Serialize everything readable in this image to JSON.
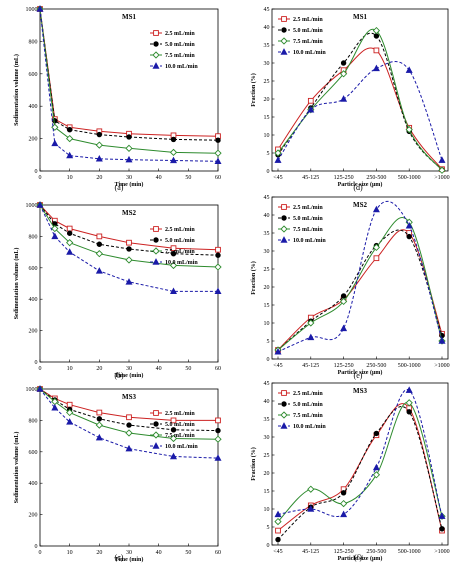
{
  "legend_labels": [
    "2.5 mL/min",
    "5.0 mL/min",
    "7.5 mL/min",
    "10.0 mL/min"
  ],
  "series_styles": [
    {
      "color": "#cc2222",
      "marker": "square-open",
      "dash": "solid"
    },
    {
      "color": "#000000",
      "marker": "circle-filled",
      "dash": "dashed"
    },
    {
      "color": "#2e8b2e",
      "marker": "diamond-open",
      "dash": "solid"
    },
    {
      "color": "#1a1aa8",
      "marker": "triangle-filled",
      "dash": "dashed"
    }
  ],
  "chart_data": [
    {
      "type": "line",
      "panel": "a",
      "caption": "(a)",
      "title": "MS1",
      "xlabel": "Time (min)",
      "ylabel": "Sedimentation volume (mL)",
      "x": [
        0,
        5,
        10,
        20,
        30,
        45,
        60
      ],
      "xlim": [
        0,
        60
      ],
      "ylim": [
        0,
        1000
      ],
      "xticks": [
        "0",
        "10",
        "20",
        "30",
        "40",
        "50",
        "60"
      ],
      "yticks": [
        "0",
        "200",
        "400",
        "600",
        "800",
        "1000"
      ],
      "series": [
        {
          "name": "2.5 mL/min",
          "values": [
            1000,
            320,
            270,
            245,
            230,
            220,
            215
          ]
        },
        {
          "name": "5.0 mL/min",
          "values": [
            1000,
            310,
            255,
            225,
            210,
            195,
            190
          ]
        },
        {
          "name": "7.5 mL/min",
          "values": [
            1000,
            270,
            200,
            160,
            140,
            115,
            110
          ]
        },
        {
          "name": "10.0 mL/min",
          "values": [
            1000,
            170,
            95,
            75,
            70,
            65,
            60
          ]
        }
      ]
    },
    {
      "type": "line",
      "panel": "b",
      "caption": "(b)",
      "title": "MS2",
      "xlabel": "Time (min)",
      "ylabel": "Sedimentation volume (mL)",
      "x": [
        0,
        5,
        10,
        20,
        30,
        45,
        60
      ],
      "xlim": [
        0,
        60
      ],
      "ylim": [
        0,
        1000
      ],
      "xticks": [
        "0",
        "10",
        "20",
        "30",
        "40",
        "50",
        "60"
      ],
      "yticks": [
        "0",
        "200",
        "400",
        "600",
        "800",
        "1000"
      ],
      "series": [
        {
          "name": "2.5 mL/min",
          "values": [
            1000,
            900,
            850,
            800,
            760,
            725,
            715
          ]
        },
        {
          "name": "5.0 mL/min",
          "values": [
            1000,
            880,
            820,
            750,
            720,
            690,
            680
          ]
        },
        {
          "name": "7.5 mL/min",
          "values": [
            1000,
            850,
            760,
            690,
            650,
            615,
            605
          ]
        },
        {
          "name": "10.0 mL/min",
          "values": [
            1000,
            800,
            700,
            580,
            510,
            450,
            450
          ]
        }
      ]
    },
    {
      "type": "line",
      "panel": "c",
      "caption": "(c)",
      "title": "MS3",
      "xlabel": "Time (min)",
      "ylabel": "Sedimentation volume (mL)",
      "x": [
        0,
        5,
        10,
        20,
        30,
        45,
        60
      ],
      "xlim": [
        0,
        60
      ],
      "ylim": [
        0,
        1000
      ],
      "xticks": [
        "0",
        "10",
        "20",
        "30",
        "40",
        "50",
        "60"
      ],
      "yticks": [
        "0",
        "200",
        "400",
        "600",
        "800",
        "1000"
      ],
      "series": [
        {
          "name": "2.5 mL/min",
          "values": [
            1000,
            940,
            900,
            850,
            820,
            800,
            800
          ]
        },
        {
          "name": "5.0 mL/min",
          "values": [
            1000,
            930,
            870,
            810,
            770,
            740,
            735
          ]
        },
        {
          "name": "7.5 mL/min",
          "values": [
            1000,
            920,
            850,
            770,
            720,
            685,
            680
          ]
        },
        {
          "name": "10.0 mL/min",
          "values": [
            1000,
            880,
            790,
            690,
            620,
            570,
            560
          ]
        }
      ]
    },
    {
      "type": "line",
      "panel": "d",
      "caption": "(d)",
      "title": "MS1",
      "xlabel": "Particle size (μm)",
      "ylabel": "Fraction (%)",
      "categories": [
        "<45",
        "45-125",
        "125-250",
        "250-500",
        "500-1000",
        ">1000"
      ],
      "ylim": [
        0,
        45
      ],
      "yticks": [
        "0",
        "5",
        "10",
        "15",
        "20",
        "25",
        "30",
        "35",
        "40",
        "45"
      ],
      "series": [
        {
          "name": "2.5 mL/min",
          "values": [
            6,
            19.5,
            28,
            33.5,
            12,
            0.5
          ]
        },
        {
          "name": "5.0 mL/min",
          "values": [
            4.5,
            17.5,
            30,
            37.5,
            11,
            0.3
          ]
        },
        {
          "name": "7.5 mL/min",
          "values": [
            5,
            17,
            27,
            39,
            11.5,
            0.2
          ]
        },
        {
          "name": "10.0 mL/min",
          "values": [
            3,
            17,
            20,
            28.5,
            28,
            3
          ]
        }
      ]
    },
    {
      "type": "line",
      "panel": "e",
      "caption": "(e)",
      "title": "MS2",
      "xlabel": "Particle size (μm)",
      "ylabel": "Fraction (%)",
      "categories": [
        "<45",
        "45-125",
        "125-250",
        "250-500",
        "500-1000",
        ">1000"
      ],
      "ylim": [
        0,
        45
      ],
      "yticks": [
        "0",
        "5",
        "10",
        "15",
        "20",
        "25",
        "30",
        "35",
        "40",
        "45"
      ],
      "series": [
        {
          "name": "2.5 mL/min",
          "values": [
            2.5,
            11.5,
            16.5,
            28,
            35,
            7
          ]
        },
        {
          "name": "5.0 mL/min",
          "values": [
            2.5,
            10.5,
            17.5,
            31.5,
            34,
            6.5
          ]
        },
        {
          "name": "7.5 mL/min",
          "values": [
            2.5,
            10,
            16,
            31,
            38,
            5
          ]
        },
        {
          "name": "10.0 mL/min",
          "values": [
            2,
            6,
            8.5,
            41.5,
            37,
            5
          ]
        }
      ]
    },
    {
      "type": "line",
      "panel": "f",
      "caption": "(f)",
      "title": "MS3",
      "xlabel": "Particle size (μm)",
      "ylabel": "Fraction (%)",
      "categories": [
        "<45",
        "45-125",
        "125-250",
        "250-500",
        "500-1000",
        ">1000"
      ],
      "ylim": [
        0,
        45
      ],
      "yticks": [
        "0",
        "5",
        "10",
        "15",
        "20",
        "25",
        "30",
        "35",
        "40",
        "45"
      ],
      "series": [
        {
          "name": "2.5 mL/min",
          "values": [
            4,
            11,
            15.5,
            30.5,
            38,
            4
          ]
        },
        {
          "name": "5.0 mL/min",
          "values": [
            1.5,
            10.5,
            14.5,
            31,
            37,
            4.5
          ]
        },
        {
          "name": "7.5 mL/min",
          "values": [
            6.5,
            15.5,
            11.5,
            19.5,
            39.5,
            8
          ]
        },
        {
          "name": "10.0 mL/min",
          "values": [
            8.5,
            10,
            8.5,
            21.5,
            43,
            8
          ]
        }
      ]
    }
  ]
}
